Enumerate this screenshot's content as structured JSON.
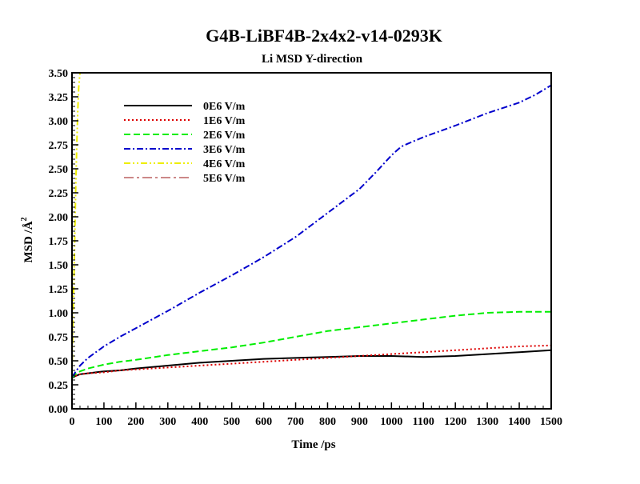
{
  "chart_data": {
    "type": "line",
    "title": "G4B-LiBF4B-2x4x2-v14-0293K",
    "subtitle": "Li MSD Y-direction",
    "xlabel": "Time /ps",
    "ylabel_main": "MSD /Å",
    "ylabel_sup": "2",
    "xlim": [
      0,
      1500
    ],
    "ylim": [
      0,
      3.5
    ],
    "x_ticks": [
      0,
      100,
      200,
      300,
      400,
      500,
      600,
      700,
      800,
      900,
      1000,
      1100,
      1200,
      1300,
      1400,
      1500
    ],
    "y_ticks": [
      "0.00",
      "0.25",
      "0.50",
      "0.75",
      "1.00",
      "1.25",
      "1.50",
      "1.75",
      "2.00",
      "2.25",
      "2.50",
      "2.75",
      "3.00",
      "3.25",
      "3.50"
    ],
    "grid": false,
    "legend_position": "top-left",
    "series": [
      {
        "name": "0E6 V/m",
        "color": "#000000",
        "dash": "solid",
        "x": [
          0,
          10,
          25,
          50,
          100,
          150,
          200,
          300,
          400,
          500,
          600,
          700,
          800,
          900,
          1000,
          1100,
          1200,
          1300,
          1400,
          1500
        ],
        "y": [
          0.32,
          0.34,
          0.36,
          0.37,
          0.39,
          0.4,
          0.42,
          0.45,
          0.48,
          0.5,
          0.52,
          0.53,
          0.54,
          0.55,
          0.55,
          0.54,
          0.55,
          0.57,
          0.59,
          0.61
        ]
      },
      {
        "name": "1E6 V/m",
        "color": "#dd0000",
        "dash": "dotted",
        "x": [
          0,
          10,
          25,
          50,
          100,
          150,
          200,
          300,
          400,
          500,
          600,
          700,
          800,
          900,
          1000,
          1100,
          1200,
          1300,
          1400,
          1500
        ],
        "y": [
          0.32,
          0.34,
          0.36,
          0.37,
          0.38,
          0.4,
          0.41,
          0.43,
          0.45,
          0.47,
          0.49,
          0.51,
          0.53,
          0.55,
          0.57,
          0.59,
          0.61,
          0.63,
          0.65,
          0.66
        ]
      },
      {
        "name": "2E6 V/m",
        "color": "#00ee00",
        "dash": "dashed",
        "x": [
          0,
          10,
          25,
          50,
          100,
          150,
          200,
          300,
          400,
          500,
          600,
          700,
          800,
          900,
          1000,
          1100,
          1200,
          1300,
          1400,
          1500
        ],
        "y": [
          0.32,
          0.36,
          0.39,
          0.42,
          0.46,
          0.49,
          0.51,
          0.56,
          0.6,
          0.64,
          0.69,
          0.75,
          0.81,
          0.85,
          0.89,
          0.93,
          0.97,
          1.0,
          1.01,
          1.01
        ]
      },
      {
        "name": "3E6 V/m",
        "color": "#0000cc",
        "dash": "dashdot",
        "x": [
          0,
          10,
          25,
          50,
          100,
          150,
          200,
          300,
          400,
          500,
          600,
          700,
          800,
          900,
          950,
          1000,
          1030,
          1050,
          1100,
          1200,
          1300,
          1400,
          1450,
          1500
        ],
        "y": [
          0.33,
          0.38,
          0.45,
          0.53,
          0.65,
          0.75,
          0.84,
          1.02,
          1.21,
          1.39,
          1.58,
          1.79,
          2.04,
          2.29,
          2.46,
          2.64,
          2.73,
          2.76,
          2.83,
          2.95,
          3.08,
          3.19,
          3.27,
          3.37
        ]
      },
      {
        "name": "4E6 V/m",
        "color": "#eeee00",
        "dash": "dashdotdot",
        "x": [
          0,
          3,
          6,
          9,
          12,
          15,
          18,
          21,
          25
        ],
        "y": [
          0.33,
          0.9,
          1.35,
          1.85,
          2.35,
          2.75,
          3.1,
          3.35,
          3.5
        ]
      },
      {
        "name": "5E6 V/m",
        "color": "#cc8888",
        "dash": "longdashdot",
        "x": [],
        "y": []
      }
    ]
  }
}
